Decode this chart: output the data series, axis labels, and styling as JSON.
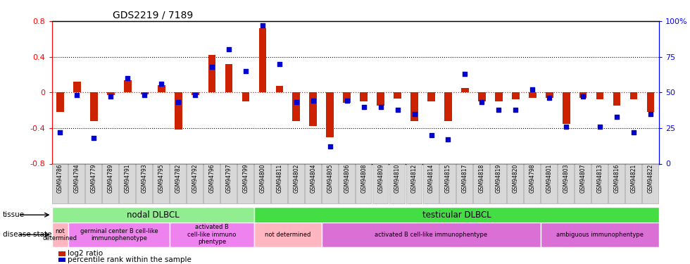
{
  "title": "GDS2219 / 7189",
  "samples": [
    "GSM94786",
    "GSM94794",
    "GSM94779",
    "GSM94789",
    "GSM94791",
    "GSM94793",
    "GSM94795",
    "GSM94782",
    "GSM94792",
    "GSM94796",
    "GSM94797",
    "GSM94799",
    "GSM94800",
    "GSM94811",
    "GSM94802",
    "GSM94804",
    "GSM94805",
    "GSM94806",
    "GSM94808",
    "GSM94809",
    "GSM94810",
    "GSM94812",
    "GSM94814",
    "GSM94815",
    "GSM94817",
    "GSM94818",
    "GSM94819",
    "GSM94820",
    "GSM94798",
    "GSM94801",
    "GSM94803",
    "GSM94807",
    "GSM94813",
    "GSM94816",
    "GSM94821",
    "GSM94822"
  ],
  "log2_ratio": [
    -0.22,
    0.12,
    -0.32,
    -0.03,
    0.14,
    -0.02,
    0.08,
    -0.42,
    -0.03,
    0.42,
    0.32,
    -0.1,
    0.72,
    0.07,
    -0.32,
    -0.38,
    -0.5,
    -0.12,
    -0.1,
    -0.15,
    -0.07,
    -0.32,
    -0.1,
    -0.32,
    0.05,
    -0.1,
    -0.1,
    -0.08,
    -0.06,
    -0.06,
    -0.35,
    -0.06,
    -0.08,
    -0.15,
    -0.08,
    -0.22
  ],
  "percentile": [
    22,
    48,
    18,
    47,
    60,
    48,
    56,
    43,
    48,
    68,
    80,
    65,
    97,
    70,
    43,
    44,
    12,
    44,
    40,
    40,
    38,
    35,
    20,
    17,
    63,
    43,
    38,
    38,
    52,
    46,
    26,
    47,
    26,
    33,
    22,
    35
  ],
  "tissue_groups": [
    {
      "label": "nodal DLBCL",
      "start": 0,
      "end": 12,
      "color": "#90ee90"
    },
    {
      "label": "testicular DLBCL",
      "start": 12,
      "end": 36,
      "color": "#44dd44"
    }
  ],
  "disease_groups": [
    {
      "label": "not\ndetermined",
      "start": 0,
      "end": 1
    },
    {
      "label": "germinal center B cell-like\nimmunophenotype",
      "start": 1,
      "end": 7
    },
    {
      "label": "activated B\ncell-like immuno\nphentype",
      "start": 7,
      "end": 12
    },
    {
      "label": "not determined",
      "start": 12,
      "end": 16
    },
    {
      "label": "activated B cell-like immunophentype",
      "start": 16,
      "end": 29
    },
    {
      "label": "ambiguous immunophentype",
      "start": 29,
      "end": 36
    }
  ],
  "disease_colors": [
    "#ffb6c1",
    "#ee82ee",
    "#ee82ee",
    "#ffb6c1",
    "#da70d6",
    "#da70d6"
  ],
  "bar_color": "#cc2200",
  "dot_color": "#0000cc",
  "bar_width": 0.45,
  "dot_size": 22,
  "ylim_left": [
    -0.8,
    0.8
  ],
  "ylim_right": [
    0,
    100
  ],
  "yticks_left": [
    -0.8,
    -0.4,
    0.0,
    0.4,
    0.8
  ],
  "yticklabels_left": [
    "-0.8",
    "-0.4",
    "0",
    "0.4",
    "0.8"
  ],
  "yticks_right": [
    0,
    25,
    50,
    75,
    100
  ],
  "yticklabels_right": [
    "0",
    "25",
    "50",
    "75",
    "100%"
  ],
  "legend_items": [
    {
      "label": "log2 ratio",
      "color": "#cc2200"
    },
    {
      "label": "percentile rank within the sample",
      "color": "#0000cc"
    }
  ],
  "tick_bg_color": "#d8d8d8",
  "tick_border_color": "#aaaaaa"
}
